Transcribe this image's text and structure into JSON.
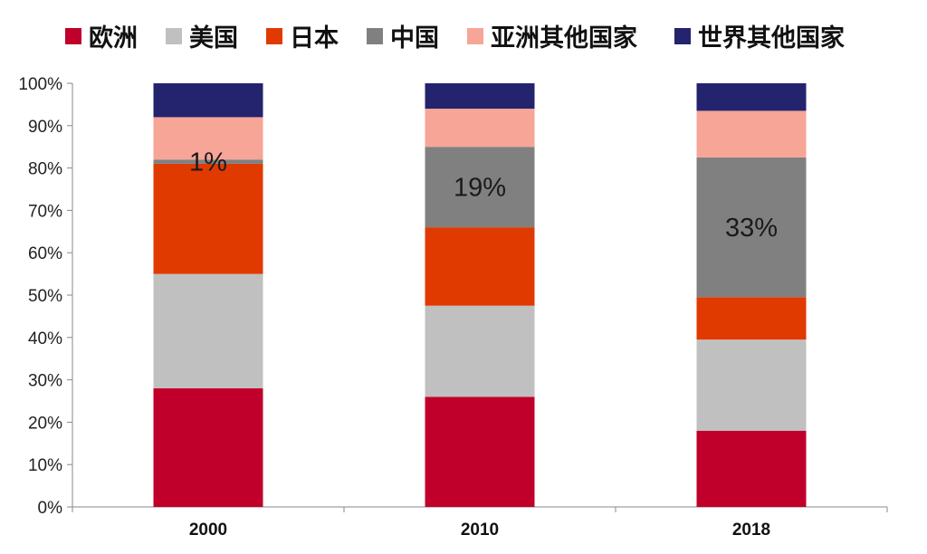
{
  "chart_data": {
    "type": "bar",
    "stacked": true,
    "categories": [
      "2000",
      "2010",
      "2018"
    ],
    "series": [
      {
        "name": "欧洲",
        "color": "#c0002a",
        "values": [
          28,
          26,
          18
        ]
      },
      {
        "name": "美国",
        "color": "#c0c0c0",
        "values": [
          27,
          21.5,
          21.5
        ]
      },
      {
        "name": "日本",
        "color": "#e03a00",
        "values": [
          26,
          18.5,
          10
        ]
      },
      {
        "name": "中国",
        "color": "#808080",
        "values": [
          1,
          19,
          33
        ]
      },
      {
        "name": "亚洲其他国家",
        "color": "#f7a597",
        "values": [
          10,
          9,
          11
        ]
      },
      {
        "name": "世界其他国家",
        "color": "#23236e",
        "values": [
          8,
          6,
          6.5
        ]
      }
    ],
    "data_labels": [
      {
        "category": "2000",
        "series": "中国",
        "text": "1%"
      },
      {
        "category": "2010",
        "series": "中国",
        "text": "19%"
      },
      {
        "category": "2018",
        "series": "中国",
        "text": "33%"
      }
    ],
    "ylim": [
      0,
      100
    ],
    "yticks": [
      "0%",
      "10%",
      "20%",
      "30%",
      "40%",
      "50%",
      "60%",
      "70%",
      "80%",
      "90%",
      "100%"
    ],
    "legend_position": "top",
    "grid": false
  }
}
